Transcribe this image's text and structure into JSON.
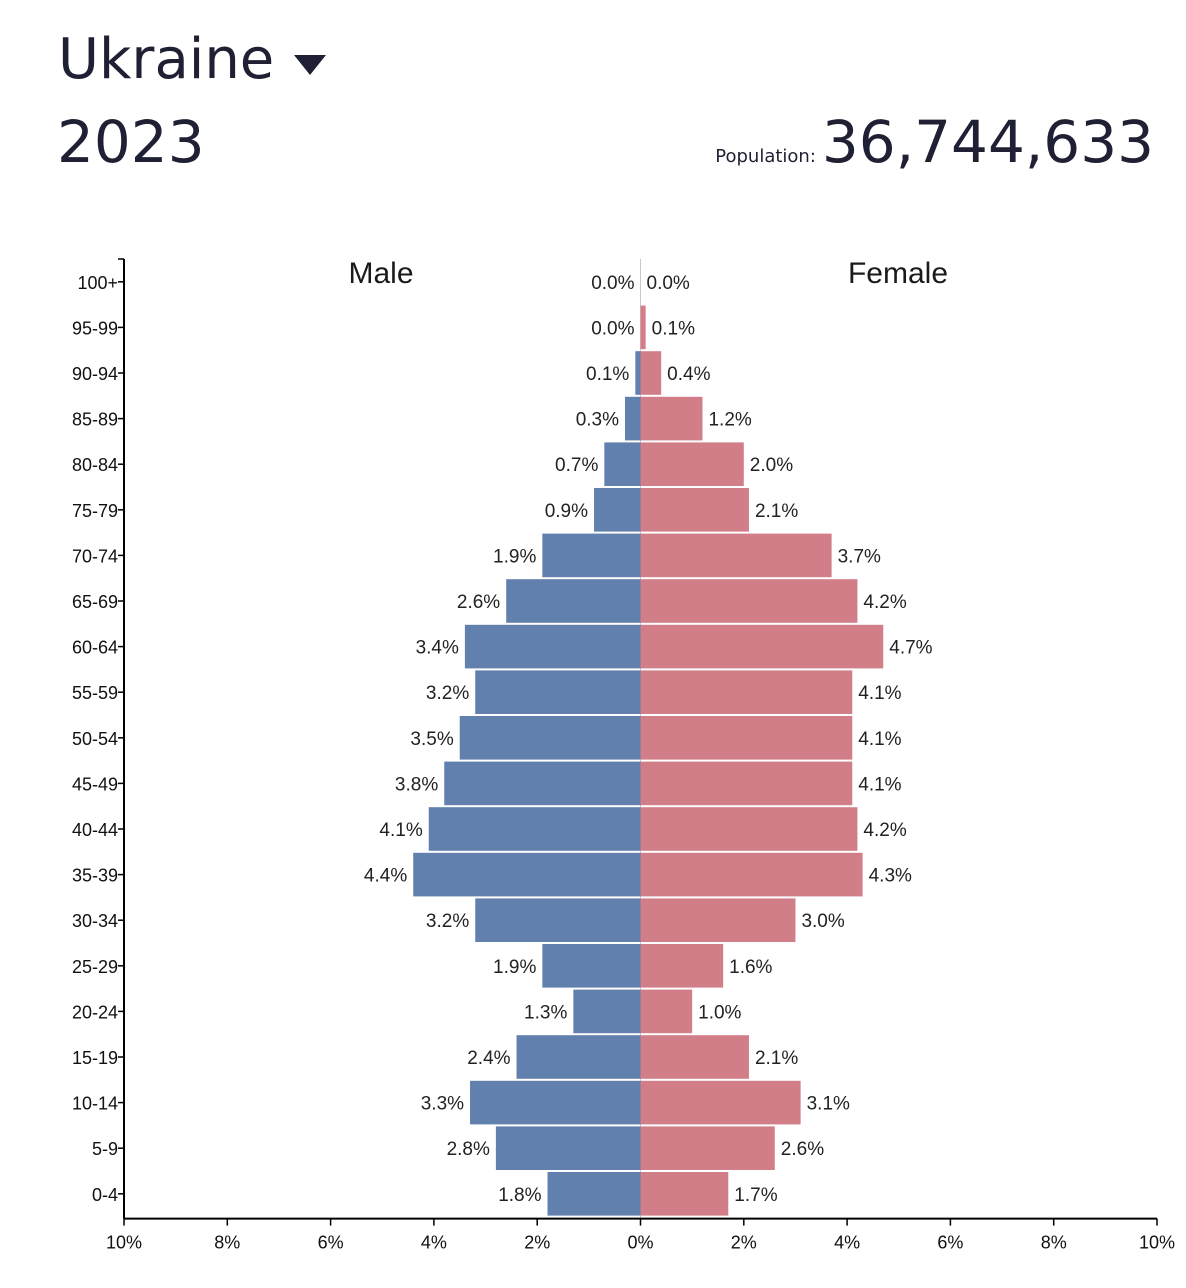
{
  "header": {
    "country": "Ukraine",
    "year": "2023",
    "population_label": "Population:",
    "population_value": "36,744,633"
  },
  "colors": {
    "male": "#6180ad",
    "female": "#d27e89",
    "text": "#1f2033"
  },
  "chart_data": {
    "type": "bar",
    "orientation": "horizontal-pyramid",
    "male_title": "Male",
    "female_title": "Female",
    "categories": [
      "100+",
      "95-99",
      "90-94",
      "85-89",
      "80-84",
      "75-79",
      "70-74",
      "65-69",
      "60-64",
      "55-59",
      "50-54",
      "45-49",
      "40-44",
      "35-39",
      "30-34",
      "25-29",
      "20-24",
      "15-19",
      "10-14",
      "5-9",
      "0-4"
    ],
    "series": [
      {
        "name": "Male",
        "values": [
          0.0,
          0.0,
          0.1,
          0.3,
          0.7,
          0.9,
          1.9,
          2.6,
          3.4,
          3.2,
          3.5,
          3.8,
          4.1,
          4.4,
          3.2,
          1.9,
          1.3,
          2.4,
          3.3,
          2.8,
          1.8
        ],
        "labels": [
          "0.0%",
          "0.0%",
          "0.1%",
          "0.3%",
          "0.7%",
          "0.9%",
          "1.9%",
          "2.6%",
          "3.4%",
          "3.2%",
          "3.5%",
          "3.8%",
          "4.1%",
          "4.4%",
          "3.2%",
          "1.9%",
          "1.3%",
          "2.4%",
          "3.3%",
          "2.8%",
          "1.8%"
        ]
      },
      {
        "name": "Female",
        "values": [
          0.0,
          0.1,
          0.4,
          1.2,
          2.0,
          2.1,
          3.7,
          4.2,
          4.7,
          4.1,
          4.1,
          4.1,
          4.2,
          4.3,
          3.0,
          1.6,
          1.0,
          2.1,
          3.1,
          2.6,
          1.7
        ],
        "labels": [
          "0.0%",
          "0.1%",
          "0.4%",
          "1.2%",
          "2.0%",
          "2.1%",
          "3.7%",
          "4.2%",
          "4.7%",
          "4.1%",
          "4.1%",
          "4.1%",
          "4.2%",
          "4.3%",
          "3.0%",
          "1.6%",
          "1.0%",
          "2.1%",
          "3.1%",
          "2.6%",
          "1.7%"
        ]
      }
    ],
    "x_ticks": [
      "10%",
      "8%",
      "6%",
      "4%",
      "2%",
      "0%",
      "2%",
      "4%",
      "6%",
      "8%",
      "10%"
    ],
    "xlim": [
      -10,
      10
    ],
    "grid": false
  }
}
